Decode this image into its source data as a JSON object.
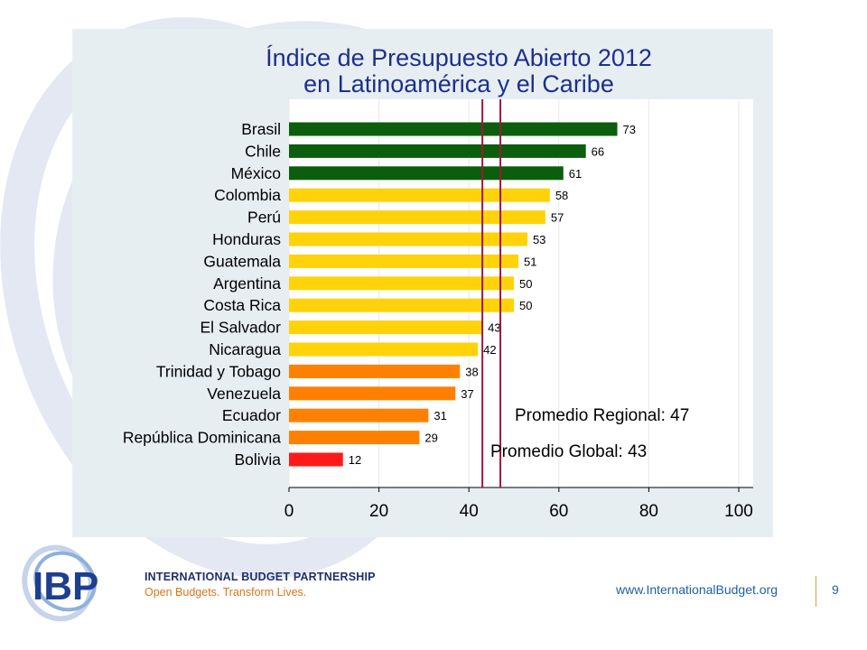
{
  "slide": {
    "title_line1": "Índice de Presupuesto Abierto 2012",
    "title_line2": "en Latinoamérica y el Caribe",
    "footer_url": "www.InternationalBudget.org",
    "page_number": "9"
  },
  "logo": {
    "letters": "IBP",
    "name": "INTERNATIONAL BUDGET PARTNERSHIP",
    "tagline": "Open Budgets. Transform Lives."
  },
  "colors": {
    "dark_green": "#0b5e0b",
    "yellow": "#ffd20a",
    "orange": "#ff8000",
    "red": "#ff1a1a",
    "reference_line": "#a0153e"
  },
  "chart_data": {
    "type": "bar",
    "orientation": "horizontal",
    "title": "Índice de Presupuesto Abierto 2012 en Latinoamérica y el Caribe",
    "categories": [
      "Brasil",
      "Chile",
      "México",
      "Colombia",
      "Perú",
      "Honduras",
      "Guatemala",
      "Argentina",
      "Costa Rica",
      "El Salvador",
      "Nicaragua",
      "Trinidad y Tobago",
      "Venezuela",
      "Ecuador",
      "República Dominicana",
      "Bolivia"
    ],
    "values": [
      73,
      66,
      61,
      58,
      57,
      53,
      51,
      50,
      50,
      43,
      42,
      38,
      37,
      31,
      29,
      12
    ],
    "bar_colors": [
      "#0b5e0b",
      "#0b5e0b",
      "#0b5e0b",
      "#ffd20a",
      "#ffd20a",
      "#ffd20a",
      "#ffd20a",
      "#ffd20a",
      "#ffd20a",
      "#ffd20a",
      "#ffd20a",
      "#ff8000",
      "#ff8000",
      "#ff8000",
      "#ff8000",
      "#ff1a1a"
    ],
    "xlim": [
      0,
      100
    ],
    "xticks": [
      0,
      20,
      40,
      60,
      80,
      100
    ],
    "grid": "vertical",
    "xlabel": "",
    "ylabel": "",
    "reference_lines": [
      {
        "value": 47,
        "label": "Promedio Regional: 47"
      },
      {
        "value": 43,
        "label": "Promedio Global: 43"
      }
    ]
  }
}
